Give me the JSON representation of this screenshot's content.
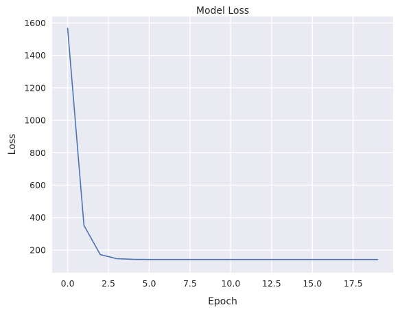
{
  "chart_data": {
    "type": "line",
    "title": "Model Loss",
    "xlabel": "Epoch",
    "ylabel": "Loss",
    "grid": true,
    "background": "#eaeaf2",
    "xlim": [
      -0.95,
      19.95
    ],
    "ylim": [
      60,
      1640
    ],
    "xticks": [
      0.0,
      2.5,
      5.0,
      7.5,
      10.0,
      12.5,
      15.0,
      17.5
    ],
    "xtick_labels": [
      "0.0",
      "2.5",
      "5.0",
      "7.5",
      "10.0",
      "12.5",
      "15.0",
      "17.5"
    ],
    "yticks": [
      200,
      400,
      600,
      800,
      1000,
      1200,
      1400,
      1600
    ],
    "ytick_labels": [
      "200",
      "400",
      "600",
      "800",
      "1000",
      "1200",
      "1400",
      "1600"
    ],
    "series": [
      {
        "color": "#4c72b0",
        "x": [
          0,
          1,
          2,
          3,
          4,
          5,
          6,
          7,
          8,
          9,
          10,
          11,
          12,
          13,
          14,
          15,
          16,
          17,
          18,
          19
        ],
        "y": [
          1567,
          352,
          172,
          147,
          143,
          142,
          142,
          142,
          142,
          142,
          142,
          142,
          142,
          142,
          142,
          142,
          142,
          142,
          142,
          142
        ]
      }
    ]
  }
}
